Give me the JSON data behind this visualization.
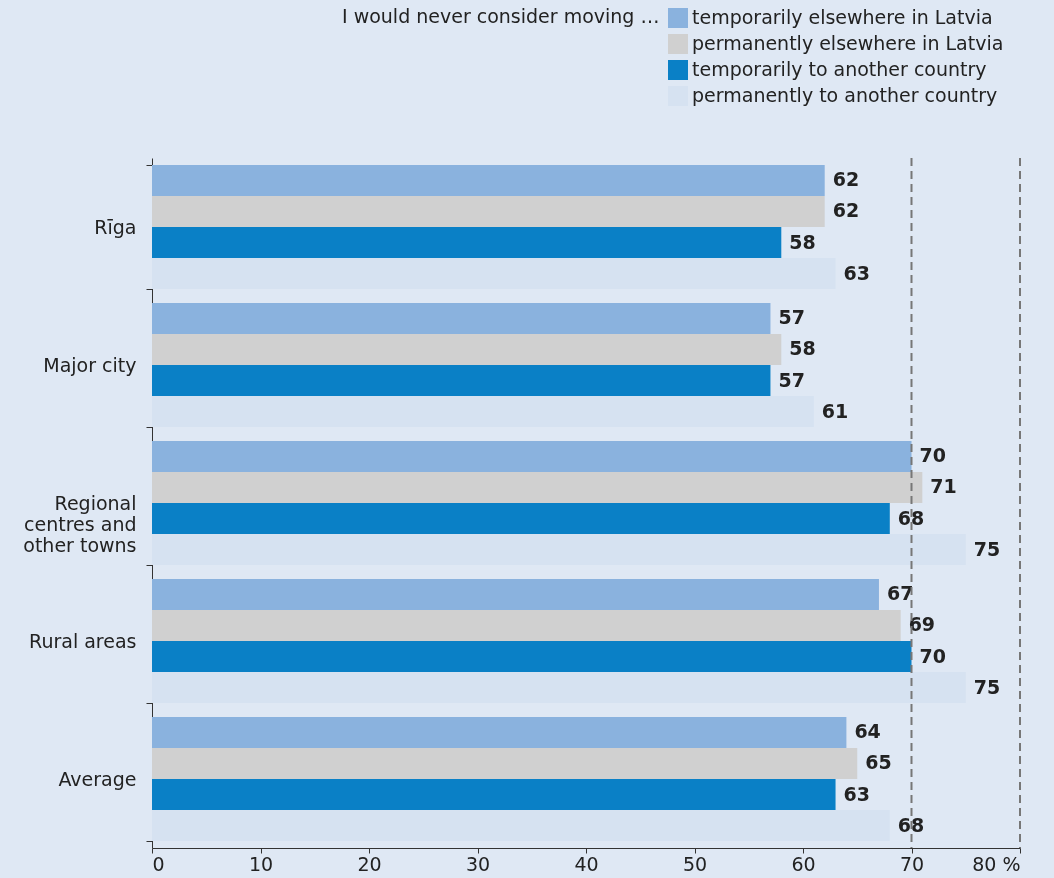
{
  "chart_data": {
    "type": "bar",
    "orientation": "horizontal",
    "legend_title": "I would never consider moving …",
    "categories": [
      "Rīga",
      "Major city",
      "Regional centres and other towns",
      "Rural areas",
      "Average"
    ],
    "series": [
      {
        "name": "temporarily elsewhere in Latvia",
        "color": "#8ab2de",
        "values": [
          62,
          57,
          70,
          67,
          64
        ]
      },
      {
        "name": "permanently elsewhere in Latvia",
        "color": "#d0d0d0",
        "values": [
          62,
          58,
          71,
          69,
          65
        ]
      },
      {
        "name": "temporarily to another country",
        "color": "#0a80c6",
        "values": [
          58,
          57,
          68,
          70,
          63
        ]
      },
      {
        "name": "permanently to another country",
        "color": "#d6e2f1",
        "values": [
          63,
          61,
          75,
          75,
          68
        ]
      }
    ],
    "xlim": [
      0,
      80
    ],
    "xticks": [
      0,
      10,
      20,
      30,
      40,
      50,
      60,
      70,
      {
        "value": 80,
        "label": "80 %"
      }
    ],
    "ref_lines": [
      {
        "axis": "x",
        "value": 70,
        "line_style": "dashed",
        "color": "#777777"
      }
    ],
    "data_labels": true,
    "legend": "top right",
    "grid": false
  }
}
